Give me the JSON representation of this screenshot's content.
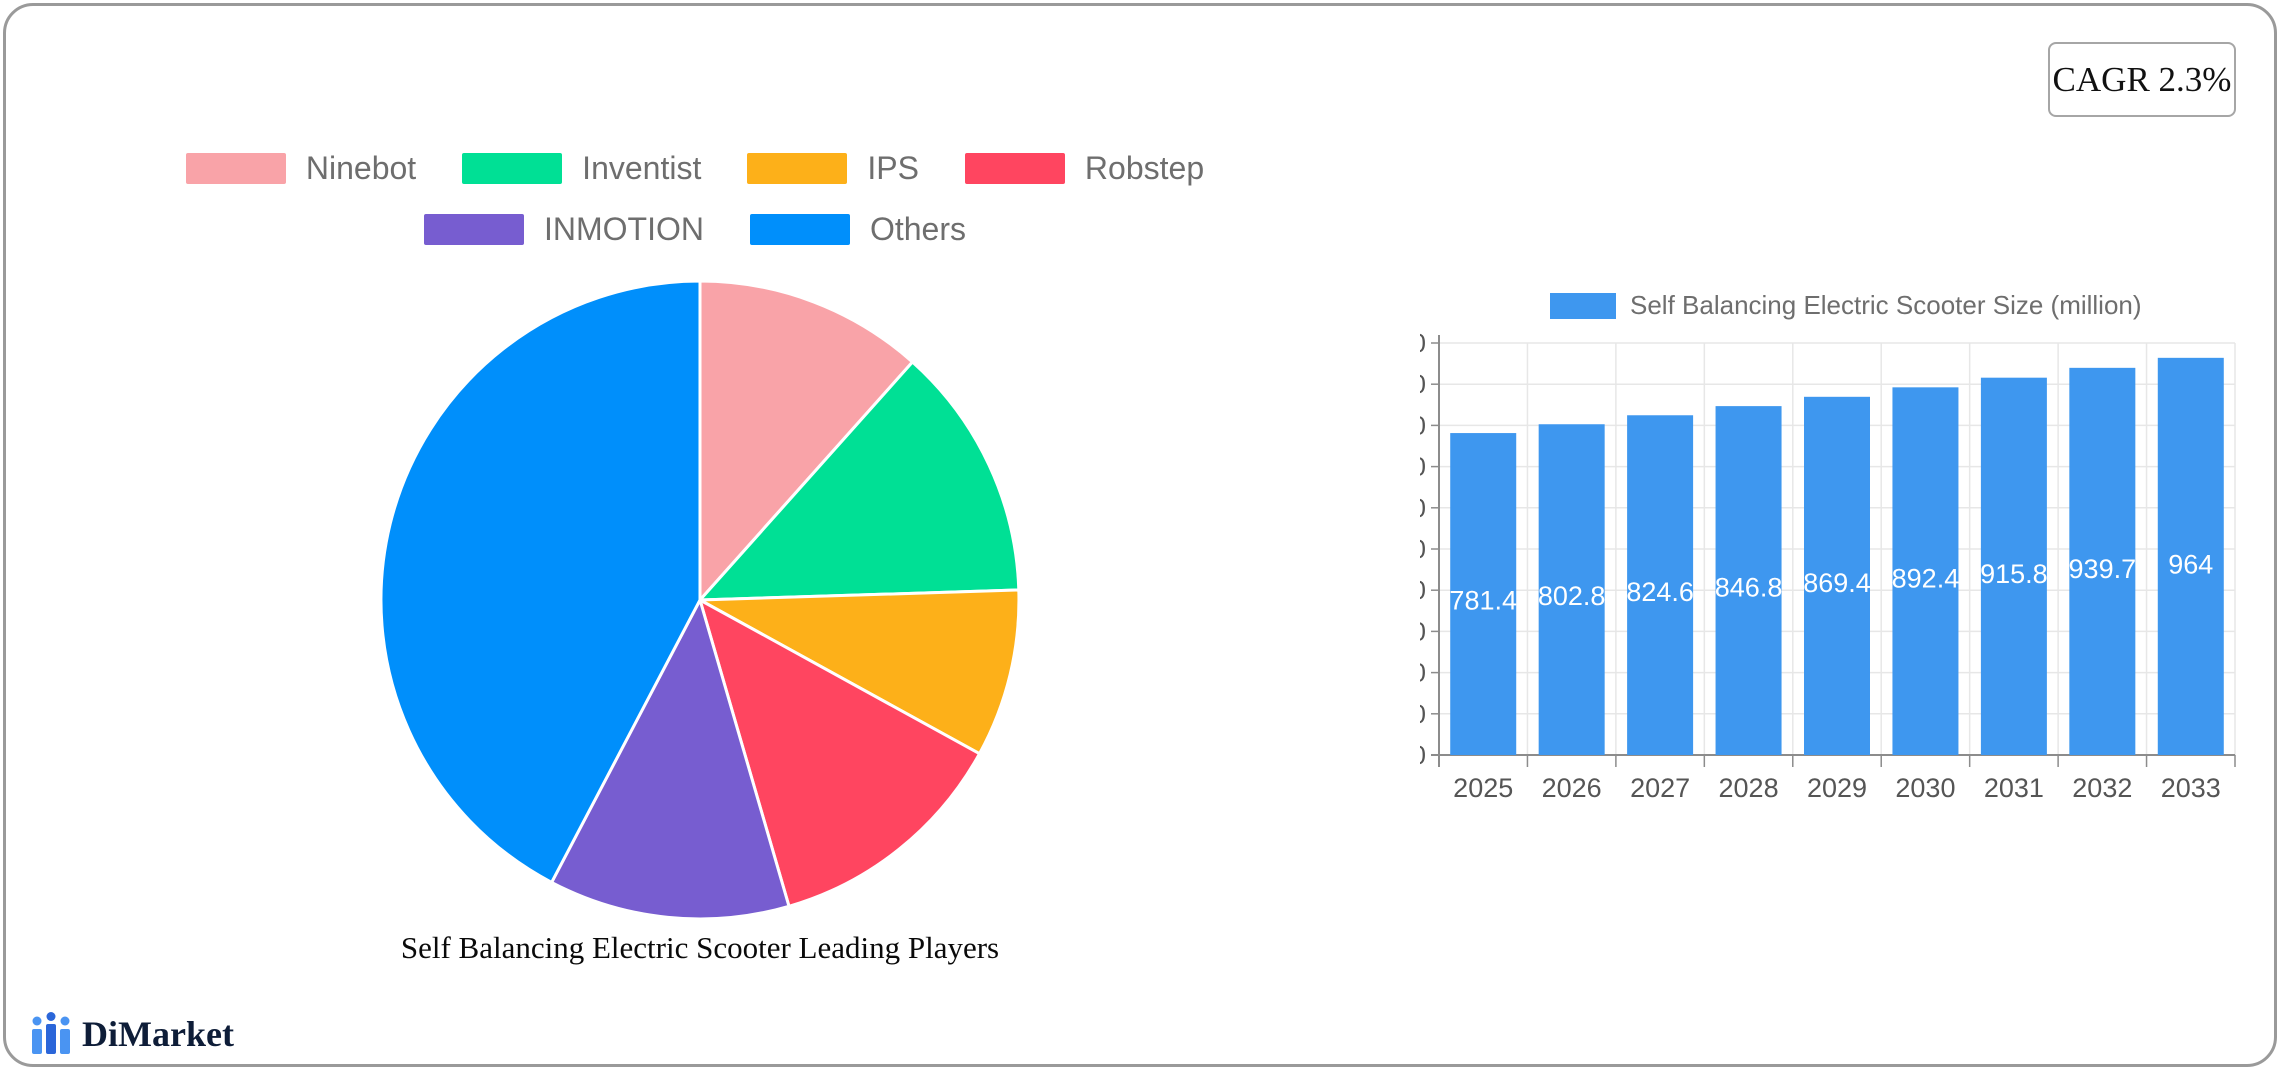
{
  "cagr_label": "CAGR 2.3%",
  "brand": {
    "name": "DiMarket"
  },
  "colors": {
    "frame_border": "#9a9a9a",
    "legend_text": "#6e6e6e",
    "axis_text": "#555555",
    "grid_line": "#e7e7e7",
    "axis_line": "#8c8c8c",
    "value_label_text": "#ffffff",
    "logo_light_blue": "#4a94f2",
    "logo_dark_blue": "#2b66d9"
  },
  "chart_data": [
    {
      "type": "pie",
      "title": "Self Balancing Electric Scooter Leading Players",
      "labels": [
        "Ninebot",
        "Inventist",
        "IPS",
        "Robstep",
        "INMOTION",
        "Others"
      ],
      "values_pct_estimated": [
        11.6,
        12.9,
        8.5,
        12.5,
        12.2,
        42.3
      ],
      "colors": [
        "#F9A3A8",
        "#00E095",
        "#FDB019",
        "#FF4560",
        "#775DD0",
        "#008FFB"
      ],
      "legend_rows": [
        [
          0,
          1,
          2,
          3
        ],
        [
          4,
          5
        ]
      ],
      "legend_position": "top",
      "start_angle_deg": 0,
      "direction": "clockwise",
      "slice_border_color": "#ffffff"
    },
    {
      "type": "bar",
      "legend": "Self Balancing Electric Scooter Size (million)",
      "legend_position": "top",
      "categories": [
        "2025",
        "2026",
        "2027",
        "2028",
        "2029",
        "2030",
        "2031",
        "2032",
        "2033"
      ],
      "values": [
        781.4,
        802.8,
        824.6,
        846.8,
        869.4,
        892.4,
        915.8,
        939.7,
        964
      ],
      "value_labels": [
        "781.4",
        "802.8",
        "824.6",
        "846.8",
        "869.4",
        "892.4",
        "915.8",
        "939.7",
        "964"
      ],
      "bar_color": "#3E97EF",
      "ylim": [
        0,
        1000
      ],
      "ytick_step": 100,
      "grid": true
    }
  ]
}
